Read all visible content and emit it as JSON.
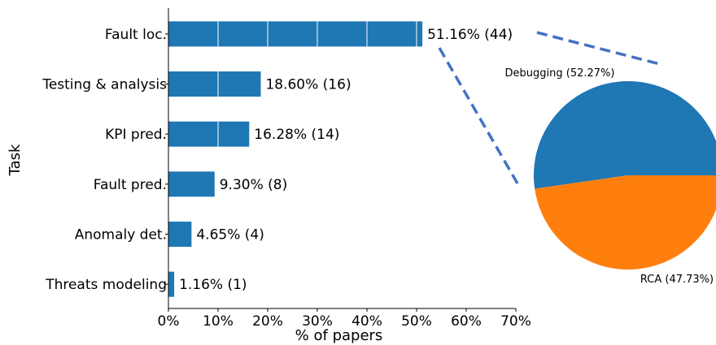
{
  "chart_data": [
    {
      "type": "bar",
      "orientation": "horizontal",
      "categories": [
        "Fault loc.",
        "Testing & analysis",
        "KPI pred.",
        "Fault pred.",
        "Anomaly det.",
        "Threats modeling"
      ],
      "values": [
        51.16,
        18.6,
        16.28,
        9.3,
        4.65,
        1.16
      ],
      "counts": [
        44,
        16,
        14,
        8,
        4,
        1
      ],
      "data_labels": [
        "51.16% (44)",
        "18.60% (16)",
        "16.28% (14)",
        "9.30% (8)",
        "4.65% (4)",
        "1.16% (1)"
      ],
      "xlabel": "% of papers",
      "ylabel": "Task",
      "xlim": [
        0,
        70
      ],
      "xticks": [
        0,
        10,
        20,
        30,
        40,
        50,
        60,
        70
      ],
      "xtick_labels": [
        "0%",
        "10%",
        "20%",
        "30%",
        "40%",
        "50%",
        "60%",
        "70%"
      ],
      "bar_color": "#1f77b4",
      "grid": false,
      "note": ""
    },
    {
      "type": "pie",
      "slices": [
        {
          "label": "Debugging (52.27%)",
          "value": 52.27,
          "color": "#1f77b4"
        },
        {
          "label": "RCA (47.73%)",
          "value": 47.73,
          "color": "#ff7f0e"
        }
      ],
      "connector_color": "#4472c4"
    }
  ]
}
